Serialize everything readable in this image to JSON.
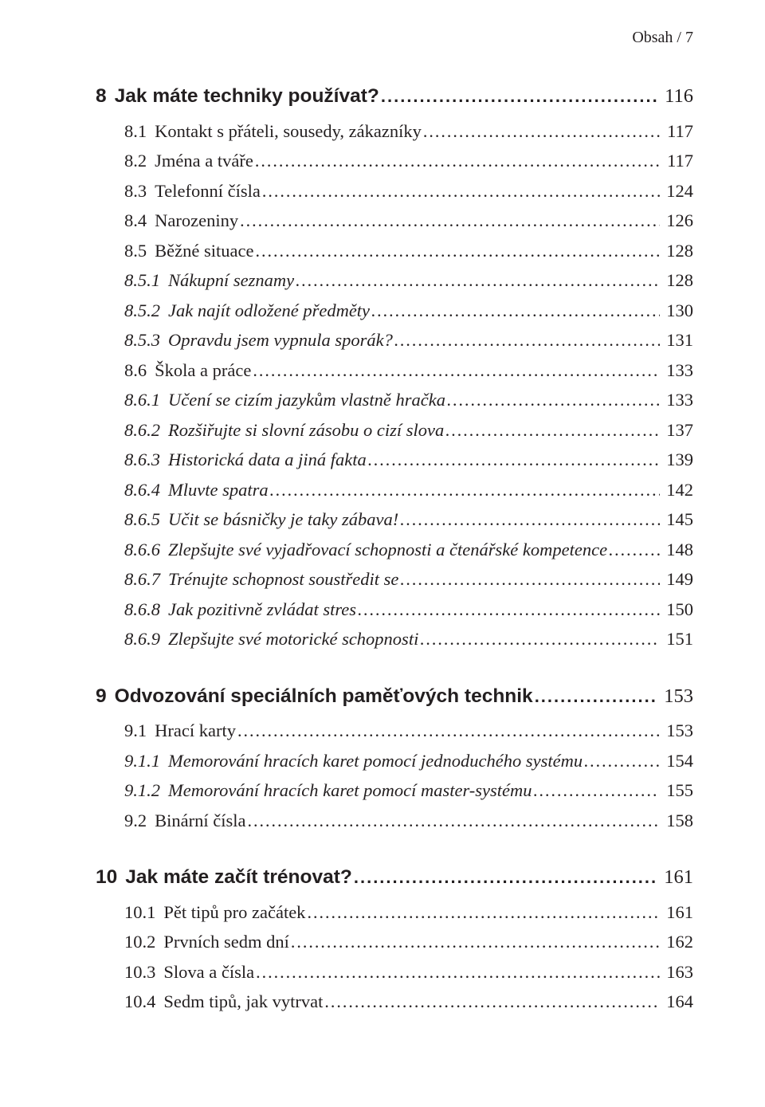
{
  "running_head": "Obsah / 7",
  "toc": [
    {
      "level": 0,
      "first": true,
      "num": "8",
      "title": "Jak máte techniky používat?",
      "page": "116"
    },
    {
      "level": 1,
      "num": "8.1",
      "title": "Kontakt s přáteli, sousedy, zákazníky",
      "page": "117"
    },
    {
      "level": 1,
      "num": "8.2",
      "title": "Jména a tváře",
      "page": "117"
    },
    {
      "level": 1,
      "num": "8.3",
      "title": "Telefonní čísla",
      "page": "124"
    },
    {
      "level": 1,
      "num": "8.4",
      "title": "Narozeniny",
      "page": "126"
    },
    {
      "level": 1,
      "num": "8.5",
      "title": "Běžné situace",
      "page": "128"
    },
    {
      "level": 2,
      "num": "8.5.1",
      "title": "Nákupní seznamy",
      "page": "128"
    },
    {
      "level": 2,
      "num": "8.5.2",
      "title": "Jak najít odložené předměty",
      "page": "130"
    },
    {
      "level": 2,
      "num": "8.5.3",
      "title": "Opravdu jsem vypnula sporák?",
      "page": "131"
    },
    {
      "level": 1,
      "num": "8.6",
      "title": "Škola a práce",
      "page": "133"
    },
    {
      "level": 2,
      "num": "8.6.1",
      "title": "Učení se cizím jazykům vlastně hračka",
      "page": "133"
    },
    {
      "level": 2,
      "num": "8.6.2",
      "title": "Rozšiřujte si slovní zásobu o cizí slova",
      "page": "137"
    },
    {
      "level": 2,
      "num": "8.6.3",
      "title": "Historická data a jiná fakta",
      "page": "139"
    },
    {
      "level": 2,
      "num": "8.6.4",
      "title": "Mluvte spatra",
      "page": "142"
    },
    {
      "level": 2,
      "num": "8.6.5",
      "title": "Učit se básničky je taky zábava!",
      "page": "145"
    },
    {
      "level": 2,
      "num": "8.6.6",
      "title": "Zlepšujte své vyjadřovací schopnosti a čtenářské kompetence",
      "page": "148"
    },
    {
      "level": 2,
      "num": "8.6.7",
      "title": "Trénujte schopnost soustředit se",
      "page": "149"
    },
    {
      "level": 2,
      "num": "8.6.8",
      "title": "Jak pozitivně zvládat stres",
      "page": "150"
    },
    {
      "level": 2,
      "num": "8.6.9",
      "title": "Zlepšujte své motorické schopnosti",
      "page": "151"
    },
    {
      "level": 0,
      "num": "9",
      "title": "Odvozování speciálních paměťových technik",
      "page": "153"
    },
    {
      "level": 1,
      "num": "9.1",
      "title": "Hrací karty",
      "page": "153"
    },
    {
      "level": 2,
      "num": "9.1.1",
      "title": "Memorování hracích karet pomocí jednoduchého systému",
      "page": "154"
    },
    {
      "level": 2,
      "num": "9.1.2",
      "title": "Memorování hracích karet pomocí master-systému",
      "page": "155"
    },
    {
      "level": 1,
      "num": "9.2",
      "title": "Binární čísla",
      "page": "158"
    },
    {
      "level": 0,
      "num": "10",
      "title": "Jak máte začít trénovat?",
      "page": "161"
    },
    {
      "level": 1,
      "num": "10.1",
      "title": "Pět tipů pro začátek",
      "page": "161"
    },
    {
      "level": 1,
      "num": "10.2",
      "title": "Prvních sedm dní",
      "page": "162"
    },
    {
      "level": 1,
      "num": "10.3",
      "title": "Slova a čísla",
      "page": "163"
    },
    {
      "level": 1,
      "num": "10.4",
      "title": "Sedm tipů, jak vytrvat",
      "page": "164"
    }
  ]
}
